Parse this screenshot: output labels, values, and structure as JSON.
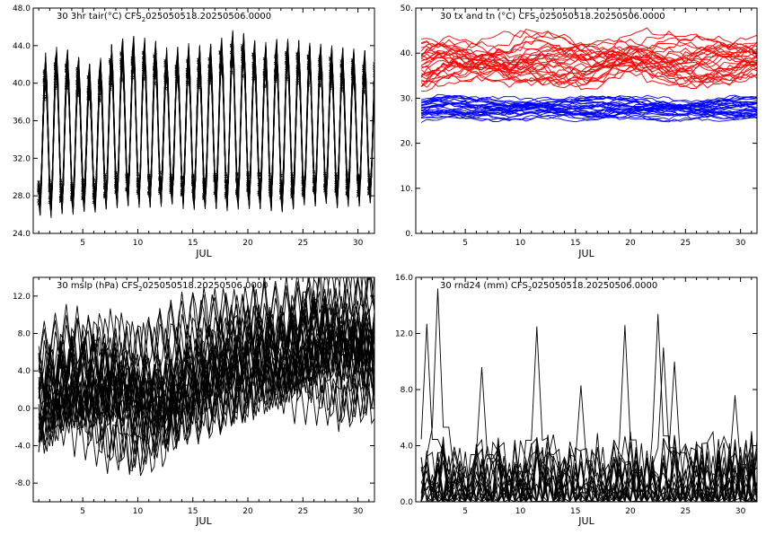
{
  "chart_data": [
    {
      "type": "line",
      "title_main": "30 3hr tair(°C) CFS",
      "title_sub": "2",
      "title_rest": "025050518.20250506.0000",
      "xlabel": "JUL",
      "xlim": [
        0.5,
        31.5
      ],
      "x_ticks": [
        5,
        10,
        15,
        20,
        25,
        30
      ],
      "ylim": [
        24,
        48
      ],
      "y_ticks": [
        "24.0",
        "28.0",
        "32.0",
        "36.0",
        "40.0",
        "44.0",
        "48.0"
      ],
      "color": "#000000",
      "ensemble_size": 30,
      "series_groups": [
        {
          "color": "#000000",
          "markers": true,
          "diurnal": true,
          "daily_max": [
            41.8,
            44.5,
            44.0,
            43.8,
            42.6,
            42.0,
            43.5,
            44.8,
            45.0,
            45.3,
            44.8,
            44.6,
            43.6,
            44.2,
            44.5,
            44.0,
            44.5,
            45.5,
            46.0,
            45.5,
            44.2,
            44.7,
            45.0,
            45.2,
            44.5,
            44.4,
            44.6,
            43.9,
            44.0,
            43.8,
            43.6
          ],
          "daily_min": [
            25.8,
            25.5,
            25.7,
            25.8,
            26.2,
            26.1,
            26.4,
            26.6,
            26.7,
            26.6,
            26.5,
            26.6,
            26.8,
            26.5,
            26.3,
            26.3,
            26.4,
            26.2,
            26.2,
            26.4,
            26.5,
            26.3,
            26.1,
            26.4,
            26.6,
            26.7,
            26.9,
            26.5,
            26.5,
            26.6,
            26.8
          ],
          "spread": 3.0
        }
      ]
    },
    {
      "type": "line",
      "title_main": "30 tx and tn (°C) CFS",
      "title_sub": "2",
      "title_rest": "025050518.20250506.0000",
      "xlabel": "JUL",
      "xlim": [
        0.5,
        31.5
      ],
      "x_ticks": [
        5,
        10,
        15,
        20,
        25,
        30
      ],
      "ylim": [
        0,
        50
      ],
      "y_ticks": [
        "0.",
        "10.",
        "20.",
        "30.",
        "40.",
        "50."
      ],
      "ensemble_size": 30,
      "series_groups": [
        {
          "color": "#ff0000",
          "center": [
            37.5,
            38.2,
            38.6,
            38.8,
            38.5,
            38.4,
            38.7,
            38.6,
            38.2,
            38.9,
            39.2,
            39.0,
            38.7,
            38.4,
            38.0,
            37.9,
            38.0,
            38.6,
            39.2,
            39.6,
            39.5,
            39.2,
            38.8,
            38.7,
            38.4,
            38.2,
            38.4,
            38.7,
            38.3,
            38.6,
            39.0
          ],
          "spread": 6.5
        },
        {
          "color": "#0000ff",
          "center": [
            27.4,
            27.7,
            27.9,
            28.0,
            27.8,
            27.7,
            27.9,
            27.8,
            27.6,
            27.8,
            28.0,
            27.9,
            27.8,
            27.7,
            27.6,
            27.5,
            27.6,
            27.8,
            28.0,
            28.1,
            28.0,
            27.9,
            27.8,
            27.7,
            27.6,
            27.4,
            27.5,
            27.6,
            27.5,
            27.7,
            27.8
          ],
          "spread": 3.0
        }
      ]
    },
    {
      "type": "line",
      "title_main": "30 mslp (hPa) CFS",
      "title_sub": "2",
      "title_rest": "025050518.20250506.0000",
      "xlabel": "JUL",
      "xlim": [
        0.5,
        31.5
      ],
      "x_ticks": [
        5,
        10,
        15,
        20,
        25,
        30
      ],
      "ylim": [
        -10,
        14
      ],
      "y_ticks": [
        "-8.0",
        "-4.0",
        "0.0",
        "4.0",
        "8.0",
        "12.0"
      ],
      "ensemble_size": 30,
      "series_groups": [
        {
          "color": "#000000",
          "diurnal": true,
          "center": [
            2.0,
            2.5,
            3.0,
            3.2,
            2.8,
            2.5,
            2.0,
            1.8,
            1.5,
            1.0,
            1.2,
            1.8,
            2.5,
            3.5,
            4.2,
            5.0,
            5.5,
            6.0,
            6.2,
            6.5,
            6.8,
            6.5,
            6.2,
            6.5,
            6.8,
            7.0,
            6.8,
            6.5,
            6.2,
            6.5,
            6.8
          ],
          "spread": 5.0
        }
      ]
    },
    {
      "type": "line",
      "title_main": "30 rnd24 (mm) CFS",
      "title_sub": "2",
      "title_rest": "025050518.20250506.0000",
      "xlabel": "JUL",
      "xlim": [
        0.5,
        31.5
      ],
      "x_ticks": [
        5,
        10,
        15,
        20,
        25,
        30
      ],
      "ylim": [
        0,
        16
      ],
      "y_ticks": [
        "0.0",
        "4.0",
        "8.0",
        "12.0",
        "16.0"
      ],
      "ensemble_size": 30,
      "series_groups": [
        {
          "color": "#000000",
          "rain": true,
          "peaks": [
            [
              2.6,
              15.2
            ],
            [
              11.6,
              12.5
            ],
            [
              22.6,
              13.4
            ],
            [
              19.6,
              12.6
            ],
            [
              1.6,
              12.7
            ],
            [
              23.1,
              11.0
            ],
            [
              24.1,
              10.0
            ],
            [
              6.6,
              9.6
            ],
            [
              15.6,
              8.3
            ],
            [
              29.6,
              7.6
            ]
          ]
        }
      ]
    }
  ]
}
